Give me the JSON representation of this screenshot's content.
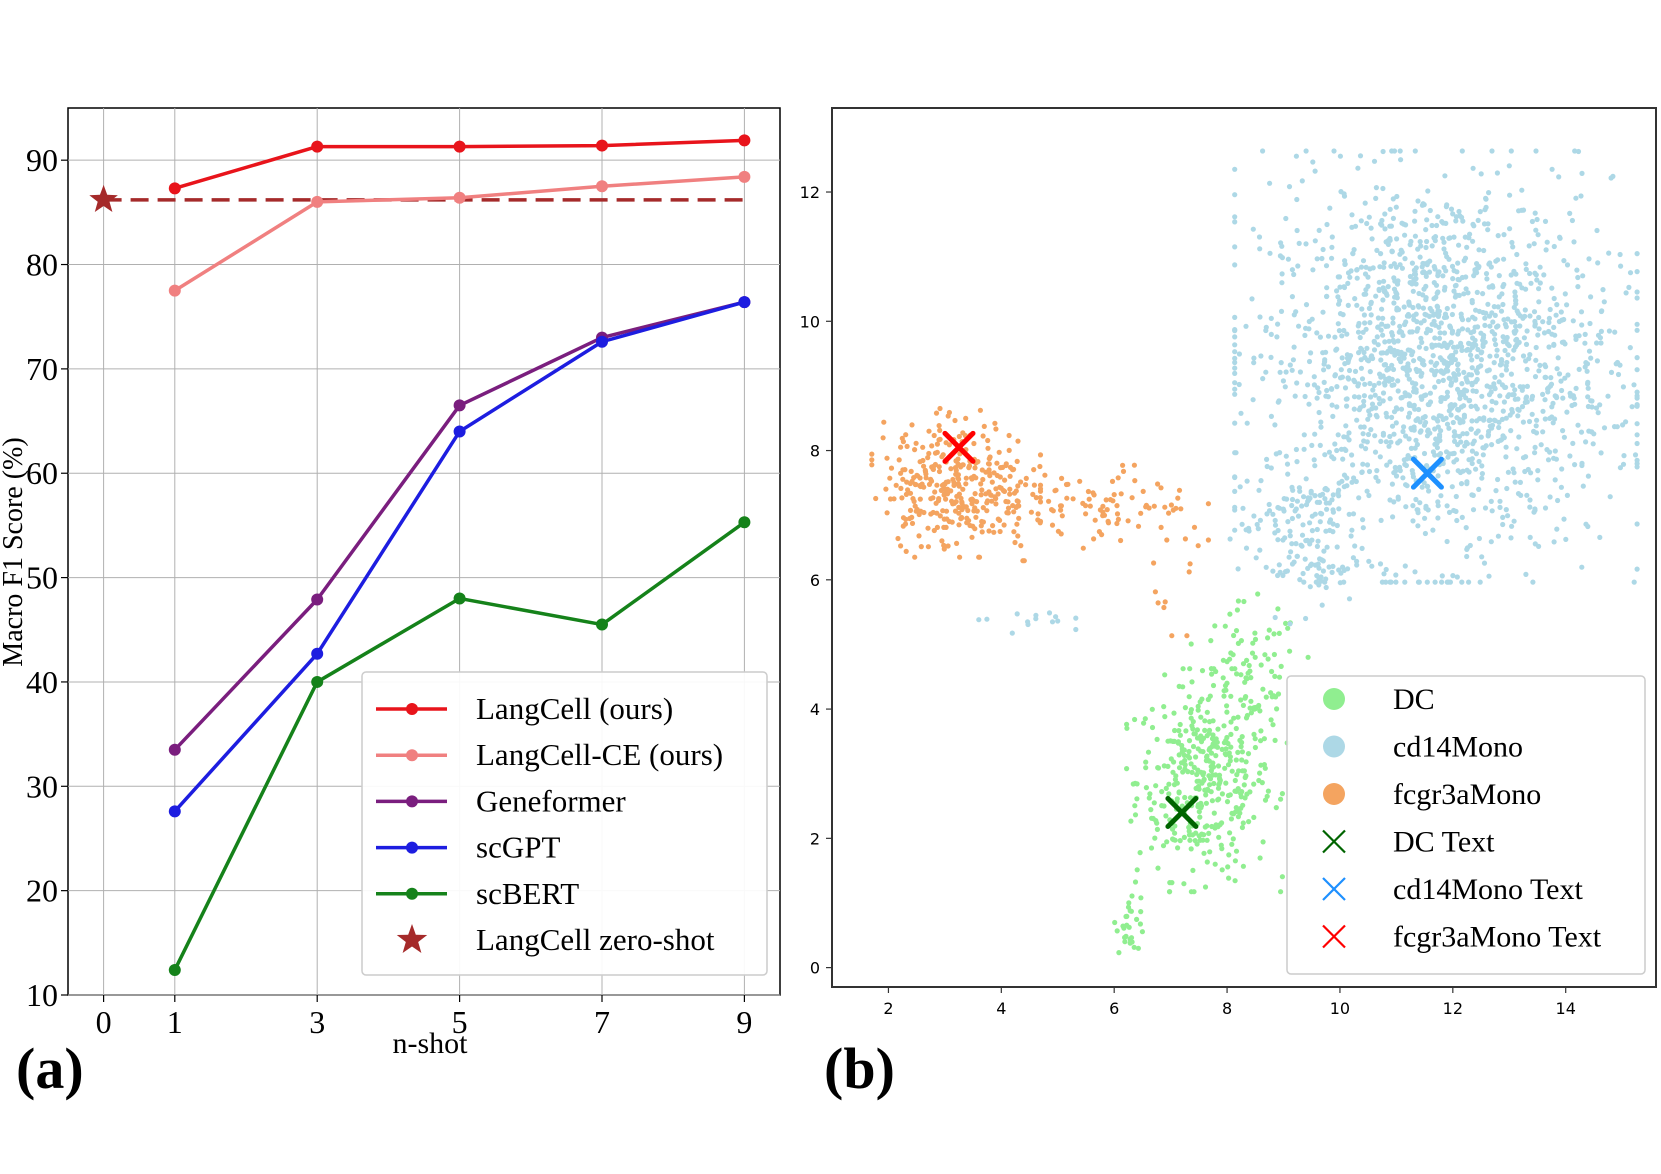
{
  "chart_data": [
    {
      "type": "line",
      "panel_label": "(a)",
      "xlabel": "n-shot",
      "ylabel": "Macro F1 Score (%)",
      "x_ticks": [
        0,
        1,
        3,
        5,
        7,
        9
      ],
      "y_ticks": [
        10,
        20,
        30,
        40,
        50,
        60,
        70,
        80,
        90
      ],
      "xlim": [
        -0.5,
        9.5
      ],
      "ylim": [
        10,
        95
      ],
      "grid": true,
      "legend_position": "bottom-right",
      "x": [
        1,
        3,
        5,
        7,
        9
      ],
      "series": [
        {
          "name": "LangCell (ours)",
          "color": "#e8141b",
          "values": [
            87.3,
            91.3,
            91.3,
            91.4,
            91.9
          ]
        },
        {
          "name": "LangCell-CE (ours)",
          "color": "#f08080",
          "values": [
            77.5,
            86.0,
            86.4,
            87.5,
            88.4
          ]
        },
        {
          "name": "Geneformer",
          "color": "#7a1e7e",
          "values": [
            33.5,
            47.9,
            66.5,
            73.0,
            76.4
          ]
        },
        {
          "name": "scGPT",
          "color": "#1d1de0",
          "values": [
            27.6,
            42.7,
            64.0,
            72.6,
            76.4
          ]
        },
        {
          "name": "scBERT",
          "color": "#15821a",
          "values": [
            12.4,
            40.0,
            48.0,
            45.5,
            55.3
          ]
        }
      ],
      "zero_shot": {
        "name": "LangCell zero-shot",
        "color": "#a52a2a",
        "x": 0,
        "value": 86.2,
        "baseline_to": 9
      }
    },
    {
      "type": "scatter",
      "panel_label": "(b)",
      "x_ticks": [
        2,
        4,
        6,
        8,
        10,
        12,
        14
      ],
      "y_ticks": [
        0,
        2,
        4,
        6,
        8,
        10,
        12
      ],
      "xlim": [
        1.0,
        15.6
      ],
      "ylim": [
        -0.3,
        13.3
      ],
      "legend_position": "bottom-right",
      "clusters": [
        {
          "name": "DC",
          "color": "#90ee90",
          "blobs": [
            {
              "cx": 7.6,
              "cy": 2.9,
              "sx": 0.6,
              "sy": 0.75,
              "n": 380
            },
            {
              "cx": 8.4,
              "cy": 4.4,
              "sx": 0.45,
              "sy": 0.6,
              "n": 90
            },
            {
              "cx": 6.3,
              "cy": 0.75,
              "sx": 0.13,
              "sy": 0.25,
              "n": 30
            }
          ]
        },
        {
          "name": "cd14Mono",
          "color": "#add8e6",
          "blobs": [
            {
              "cx": 11.7,
              "cy": 9.3,
              "sx": 1.55,
              "sy": 1.45,
              "n": 1700
            },
            {
              "cx": 9.3,
              "cy": 6.7,
              "sx": 0.55,
              "sy": 0.6,
              "n": 140
            },
            {
              "cx": 4.4,
              "cy": 5.4,
              "sx": 0.4,
              "sy": 0.1,
              "n": 14
            }
          ]
        },
        {
          "name": "fcgr3aMono",
          "color": "#f4a460",
          "blobs": [
            {
              "cx": 3.2,
              "cy": 7.5,
              "sx": 0.65,
              "sy": 0.5,
              "n": 330
            },
            {
              "cx": 5.6,
              "cy": 7.1,
              "sx": 0.9,
              "sy": 0.35,
              "n": 100
            },
            {
              "cx": 7.2,
              "cy": 6.4,
              "sx": 0.25,
              "sy": 0.55,
              "n": 14
            }
          ]
        }
      ],
      "text_markers": [
        {
          "name": "DC Text",
          "color": "#006400",
          "x": 7.2,
          "y": 2.4
        },
        {
          "name": "cd14Mono Text",
          "color": "#1e90ff",
          "x": 11.55,
          "y": 7.65
        },
        {
          "name": "fcgr3aMono Text",
          "color": "#ff0000",
          "x": 3.25,
          "y": 8.05
        }
      ]
    }
  ]
}
